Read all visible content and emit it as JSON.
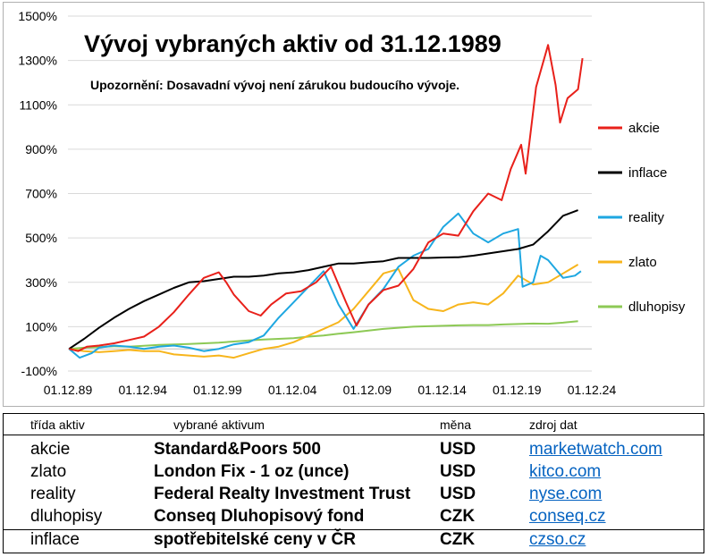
{
  "chart_data": {
    "type": "line",
    "title": "Vývoj vybraných aktiv od 31.12.1989",
    "subtitle": "Upozornění: Dosavadní vývoj není zárukou budoucího vývoje.",
    "xlabel": "",
    "ylabel": "",
    "x_ticks": [
      "01.12.89",
      "01.12.94",
      "01.12.99",
      "01.12.04",
      "01.12.09",
      "01.12.14",
      "01.12.19",
      "01.12.24"
    ],
    "x_range": [
      1989.92,
      2024.92
    ],
    "y_ticks": [
      "-100%",
      "100%",
      "300%",
      "500%",
      "700%",
      "900%",
      "1100%",
      "1300%",
      "1500%"
    ],
    "ylim": [
      -100,
      1500
    ],
    "grid": "horizontal",
    "legend_position": "right",
    "series": [
      {
        "name": "akcie",
        "color": "#e8201a",
        "points": [
          [
            1990,
            0
          ],
          [
            1990.6,
            -10
          ],
          [
            1991.2,
            10
          ],
          [
            1992,
            15
          ],
          [
            1993,
            25
          ],
          [
            1994,
            40
          ],
          [
            1995,
            55
          ],
          [
            1996,
            100
          ],
          [
            1997,
            165
          ],
          [
            1998,
            245
          ],
          [
            1999,
            320
          ],
          [
            2000,
            345
          ],
          [
            2000.5,
            300
          ],
          [
            2001,
            245
          ],
          [
            2002,
            170
          ],
          [
            2002.8,
            150
          ],
          [
            2003.5,
            200
          ],
          [
            2004.5,
            250
          ],
          [
            2005.5,
            260
          ],
          [
            2006.5,
            300
          ],
          [
            2007.5,
            370
          ],
          [
            2008.5,
            210
          ],
          [
            2009.2,
            105
          ],
          [
            2010,
            200
          ],
          [
            2011,
            265
          ],
          [
            2012,
            285
          ],
          [
            2013,
            360
          ],
          [
            2014,
            480
          ],
          [
            2015,
            520
          ],
          [
            2016,
            510
          ],
          [
            2017,
            620
          ],
          [
            2018,
            700
          ],
          [
            2018.9,
            670
          ],
          [
            2019.5,
            810
          ],
          [
            2020.2,
            920
          ],
          [
            2020.5,
            790
          ],
          [
            2021.2,
            1180
          ],
          [
            2022,
            1370
          ],
          [
            2022.5,
            1190
          ],
          [
            2022.8,
            1020
          ],
          [
            2023.3,
            1130
          ],
          [
            2024,
            1170
          ],
          [
            2024.3,
            1310
          ]
        ]
      },
      {
        "name": "inflace",
        "color": "#000000",
        "points": [
          [
            1990,
            0
          ],
          [
            1991,
            45
          ],
          [
            1992,
            95
          ],
          [
            1993,
            140
          ],
          [
            1994,
            180
          ],
          [
            1995,
            215
          ],
          [
            1996,
            245
          ],
          [
            1997,
            275
          ],
          [
            1998,
            300
          ],
          [
            1999,
            305
          ],
          [
            2000,
            315
          ],
          [
            2001,
            325
          ],
          [
            2002,
            325
          ],
          [
            2003,
            330
          ],
          [
            2004,
            340
          ],
          [
            2005,
            345
          ],
          [
            2006,
            355
          ],
          [
            2007,
            370
          ],
          [
            2008,
            385
          ],
          [
            2009,
            385
          ],
          [
            2010,
            390
          ],
          [
            2011,
            395
          ],
          [
            2012,
            410
          ],
          [
            2013,
            410
          ],
          [
            2014,
            410
          ],
          [
            2015,
            412
          ],
          [
            2016,
            413
          ],
          [
            2017,
            420
          ],
          [
            2018,
            430
          ],
          [
            2019,
            440
          ],
          [
            2020,
            450
          ],
          [
            2021,
            470
          ],
          [
            2022,
            530
          ],
          [
            2023,
            600
          ],
          [
            2024,
            625
          ]
        ]
      },
      {
        "name": "reality",
        "color": "#1ea7e1",
        "points": [
          [
            1990,
            0
          ],
          [
            1990.7,
            -40
          ],
          [
            1991.5,
            -20
          ],
          [
            1992,
            5
          ],
          [
            1993,
            15
          ],
          [
            1994,
            10
          ],
          [
            1995,
            0
          ],
          [
            1996,
            10
          ],
          [
            1997,
            15
          ],
          [
            1998,
            5
          ],
          [
            1999,
            -10
          ],
          [
            2000,
            0
          ],
          [
            2001,
            20
          ],
          [
            2002,
            30
          ],
          [
            2003,
            60
          ],
          [
            2004,
            140
          ],
          [
            2005,
            210
          ],
          [
            2006,
            280
          ],
          [
            2007,
            350
          ],
          [
            2008,
            200
          ],
          [
            2009,
            90
          ],
          [
            2010,
            200
          ],
          [
            2011,
            270
          ],
          [
            2012,
            370
          ],
          [
            2013,
            420
          ],
          [
            2014,
            450
          ],
          [
            2015,
            550
          ],
          [
            2016,
            610
          ],
          [
            2017,
            520
          ],
          [
            2018,
            480
          ],
          [
            2019,
            520
          ],
          [
            2020,
            540
          ],
          [
            2020.3,
            280
          ],
          [
            2021,
            300
          ],
          [
            2021.5,
            420
          ],
          [
            2022,
            400
          ],
          [
            2022.5,
            360
          ],
          [
            2023,
            320
          ],
          [
            2023.8,
            330
          ],
          [
            2024.2,
            350
          ]
        ]
      },
      {
        "name": "zlato",
        "color": "#f7b51c",
        "points": [
          [
            1990,
            0
          ],
          [
            1991,
            -10
          ],
          [
            1992,
            -15
          ],
          [
            1993,
            -10
          ],
          [
            1994,
            -5
          ],
          [
            1995,
            -10
          ],
          [
            1996,
            -10
          ],
          [
            1997,
            -25
          ],
          [
            1998,
            -30
          ],
          [
            1999,
            -35
          ],
          [
            2000,
            -30
          ],
          [
            2001,
            -40
          ],
          [
            2002,
            -20
          ],
          [
            2003,
            0
          ],
          [
            2004,
            10
          ],
          [
            2005,
            30
          ],
          [
            2006,
            60
          ],
          [
            2007,
            90
          ],
          [
            2008,
            120
          ],
          [
            2009,
            180
          ],
          [
            2010,
            260
          ],
          [
            2011,
            340
          ],
          [
            2012,
            360
          ],
          [
            2013,
            220
          ],
          [
            2014,
            180
          ],
          [
            2015,
            170
          ],
          [
            2016,
            200
          ],
          [
            2017,
            210
          ],
          [
            2018,
            200
          ],
          [
            2019,
            250
          ],
          [
            2020,
            330
          ],
          [
            2021,
            290
          ],
          [
            2022,
            300
          ],
          [
            2023,
            340
          ],
          [
            2024,
            380
          ]
        ]
      },
      {
        "name": "dluhopisy",
        "color": "#8dc955",
        "points": [
          [
            1990,
            0
          ],
          [
            1991,
            5
          ],
          [
            1992,
            8
          ],
          [
            1993,
            12
          ],
          [
            1994,
            10
          ],
          [
            1995,
            14
          ],
          [
            1996,
            18
          ],
          [
            1997,
            20
          ],
          [
            1998,
            22
          ],
          [
            1999,
            25
          ],
          [
            2000,
            28
          ],
          [
            2001,
            33
          ],
          [
            2002,
            38
          ],
          [
            2003,
            42
          ],
          [
            2004,
            45
          ],
          [
            2005,
            48
          ],
          [
            2006,
            55
          ],
          [
            2007,
            60
          ],
          [
            2008,
            68
          ],
          [
            2009,
            75
          ],
          [
            2010,
            82
          ],
          [
            2011,
            90
          ],
          [
            2012,
            95
          ],
          [
            2013,
            100
          ],
          [
            2014,
            102
          ],
          [
            2015,
            104
          ],
          [
            2016,
            106
          ],
          [
            2017,
            107
          ],
          [
            2018,
            107
          ],
          [
            2019,
            110
          ],
          [
            2020,
            112
          ],
          [
            2021,
            114
          ],
          [
            2022,
            113
          ],
          [
            2023,
            118
          ],
          [
            2024,
            125
          ]
        ]
      }
    ]
  },
  "table": {
    "headers": {
      "class": "třída aktiv",
      "asset": "vybrané aktivum",
      "currency": "měna",
      "source": "zdroj dat"
    },
    "rows": [
      {
        "class": "akcie",
        "asset": "Standard&Poors 500",
        "currency": "USD",
        "source": "marketwatch.com"
      },
      {
        "class": "zlato",
        "asset": "London Fix - 1 oz (unce)",
        "currency": "USD",
        "source": "kitco.com"
      },
      {
        "class": "reality",
        "asset": "Federal Realty Investment Trust",
        "currency": "USD",
        "source": "nyse.com"
      },
      {
        "class": "dluhopisy",
        "asset": "Conseq Dluhopisový fond",
        "currency": "CZK",
        "source": "conseq.cz"
      },
      {
        "class": "inflace",
        "asset": "spotřebitelské ceny v ČR",
        "currency": "CZK",
        "source": "czso.cz"
      }
    ]
  }
}
